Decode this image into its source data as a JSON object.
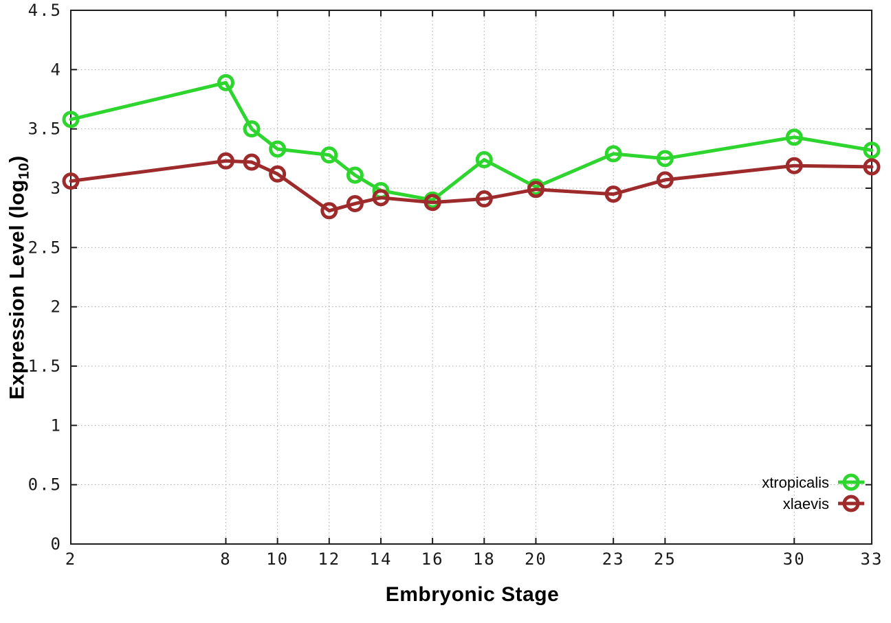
{
  "chart_data": {
    "type": "line",
    "title": "",
    "xlabel": "Embryonic Stage",
    "ylabel": "Expression Level (log10)",
    "ylabel_parts": {
      "pre": "Expression Level (log",
      "sub": "10",
      "post": ")"
    },
    "x": [
      2,
      8,
      9,
      10,
      12,
      13,
      14,
      16,
      18,
      20,
      23,
      25,
      30,
      33
    ],
    "series": [
      {
        "name": "xtropicalis",
        "color": "#2fd52f",
        "values": [
          3.58,
          3.89,
          3.5,
          3.33,
          3.28,
          3.11,
          2.98,
          2.9,
          3.24,
          3.01,
          3.29,
          3.25,
          3.43,
          3.32
        ]
      },
      {
        "name": "xlaevis",
        "color": "#9e2b2b",
        "values": [
          3.06,
          3.23,
          3.22,
          3.12,
          2.81,
          2.87,
          2.92,
          2.88,
          2.91,
          2.99,
          2.95,
          3.07,
          3.19,
          3.18
        ]
      }
    ],
    "xlim": [
      2,
      33
    ],
    "ylim": [
      0,
      4.5
    ],
    "xticks": [
      2,
      8,
      10,
      12,
      14,
      16,
      18,
      20,
      23,
      25,
      30,
      33
    ],
    "xtick_labels": [
      "2",
      "8",
      "10",
      "12",
      "14",
      "16",
      "18",
      "20",
      "23",
      "25",
      "30",
      "33"
    ],
    "yticks": [
      0,
      0.5,
      1,
      1.5,
      2,
      2.5,
      3,
      3.5,
      4,
      4.5
    ],
    "ytick_labels": [
      "0",
      "0.5",
      "1",
      "1.5",
      "2",
      "2.5",
      "3",
      "3.5",
      "4",
      "4.5"
    ],
    "grid": true,
    "grid_style": "dotted",
    "legend_position": "inside-bottom-right",
    "colors": {
      "background": "#ffffff",
      "axis": "#1c1c1c",
      "grid": "#a6a6a6",
      "tick_label": "#1a1a1a"
    }
  }
}
